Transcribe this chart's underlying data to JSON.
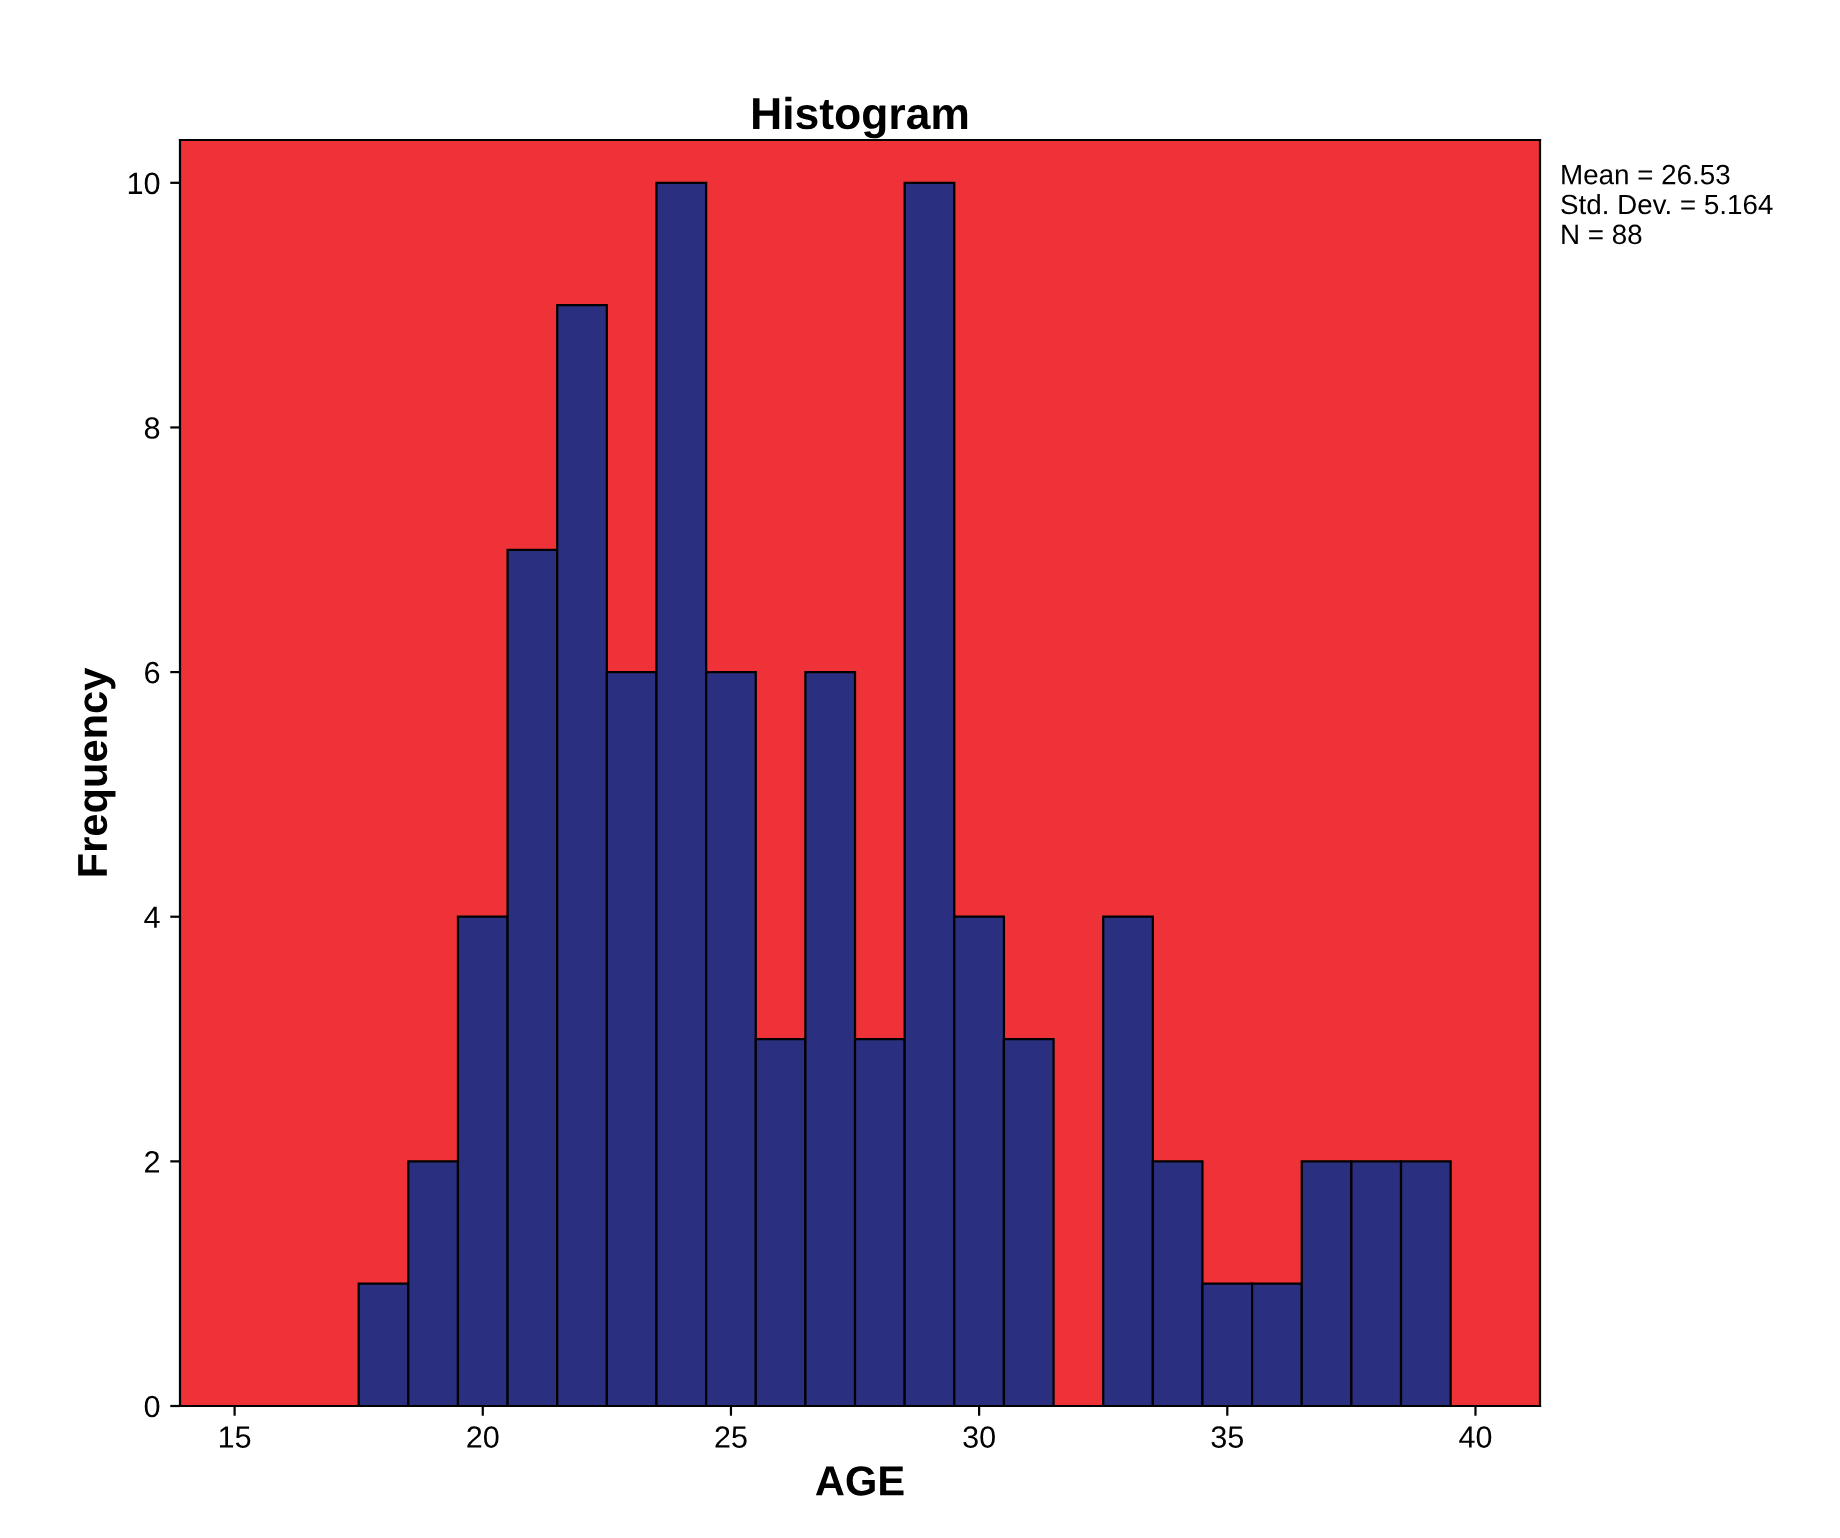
{
  "chart_data": {
    "type": "histogram",
    "title": "Histogram",
    "xlabel": "AGE",
    "ylabel": "Frequency",
    "bins": [
      17.5,
      18.5,
      19.5,
      20.5,
      21.5,
      22.5,
      23.5,
      24.5,
      25.5,
      26.5,
      27.5,
      28.5,
      29.5,
      30.5,
      31.5,
      32.5,
      33.5,
      34.5,
      35.5,
      36.5,
      37.5,
      38.5,
      39.5
    ],
    "values": [
      1,
      2,
      4,
      7,
      9,
      6,
      10,
      6,
      3,
      6,
      3,
      10,
      4,
      3,
      0,
      4,
      2,
      1,
      1,
      2,
      2,
      2
    ],
    "color": "#2b2f7f",
    "xlim": [
      13.9,
      41.3
    ],
    "ylim": [
      0,
      10.35
    ],
    "xticks": [
      15,
      20,
      25,
      30,
      35,
      40
    ],
    "yticks": [
      0,
      2,
      4,
      6,
      8,
      10
    ],
    "grid": false,
    "annotations": [
      "Mean = 26.53\nStd. Dev. = 5.164\nN = 88"
    ]
  }
}
